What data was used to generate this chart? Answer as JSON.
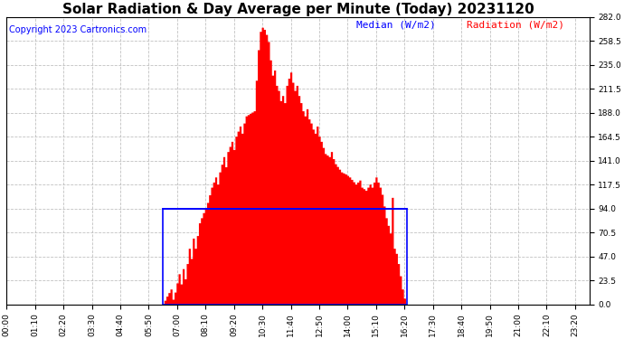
{
  "title": "Solar Radiation & Day Average per Minute (Today) 20231120",
  "copyright": "Copyright 2023 Cartronics.com",
  "legend_median_label": "Median (W/m2)",
  "legend_radiation_label": "Radiation (W/m2)",
  "ylim": [
    0,
    282.0
  ],
  "yticks": [
    0.0,
    23.5,
    47.0,
    70.5,
    94.0,
    117.5,
    141.0,
    164.5,
    188.0,
    211.5,
    235.0,
    258.5,
    282.0
  ],
  "background_color": "#ffffff",
  "plot_bg_color": "#ffffff",
  "grid_color": "#bbbbbb",
  "bar_color": "#ff0000",
  "median_line_color": "#0000ff",
  "median_value": 94.0,
  "rise_index": 77,
  "set_index": 197,
  "rect_color": "#0000ff",
  "title_fontsize": 11,
  "copyright_fontsize": 7,
  "legend_fontsize": 8,
  "tick_fontsize": 6.5,
  "tick_step": 14,
  "n_points": 288,
  "minutes_step": 5
}
